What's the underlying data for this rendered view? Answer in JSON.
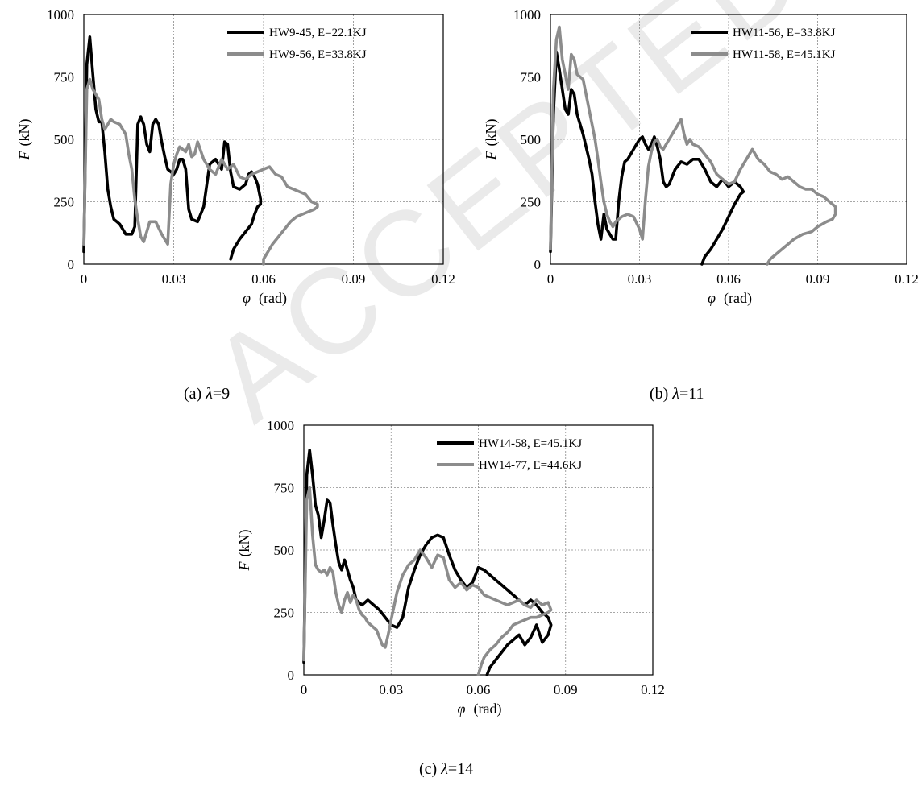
{
  "watermark": "ACCEPTED MANUSCRIPT",
  "axis": {
    "x_symbol": "φ",
    "x_unit": "(rad)",
    "y_symbol": "F",
    "y_unit": "(kN)"
  },
  "colors": {
    "black_series": "#000000",
    "gray_series": "#8c8c8c",
    "grid": "#8a8a8a"
  },
  "chart_data": [
    {
      "type": "line",
      "caption": {
        "prefix": "(a) ",
        "symbol": "λ",
        "suffix": "=9"
      },
      "xlabel": "φ (rad)",
      "ylabel": "F (kN)",
      "xlim": [
        0,
        0.12
      ],
      "ylim": [
        0,
        1000
      ],
      "xticks": [
        "0",
        "0.03",
        "0.06",
        "0.09",
        "0.12"
      ],
      "yticks": [
        "0",
        "250",
        "500",
        "750",
        "1000"
      ],
      "grid": true,
      "legend_position": "top-right",
      "series": [
        {
          "name": "HW9-45, E=22.1KJ",
          "color": "#000000",
          "x": [
            0.0,
            0.001,
            0.002,
            0.003,
            0.004,
            0.005,
            0.006,
            0.007,
            0.008,
            0.009,
            0.01,
            0.011,
            0.012,
            0.013,
            0.014,
            0.016,
            0.017,
            0.018,
            0.019,
            0.02,
            0.021,
            0.022,
            0.023,
            0.024,
            0.025,
            0.026,
            0.027,
            0.028,
            0.029,
            0.03,
            0.031,
            0.032,
            0.033,
            0.034,
            0.035,
            0.036,
            0.038,
            0.04,
            0.042,
            0.044,
            0.046,
            0.047,
            0.048,
            0.049,
            0.05,
            0.052,
            0.054,
            0.055,
            0.056,
            0.057,
            0.058,
            0.059,
            0.059,
            0.058,
            0.057,
            0.056,
            0.054,
            0.052,
            0.05,
            0.049
          ],
          "y": [
            50,
            800,
            910,
            760,
            620,
            570,
            570,
            450,
            300,
            230,
            180,
            170,
            160,
            140,
            120,
            120,
            150,
            560,
            590,
            560,
            480,
            450,
            560,
            580,
            560,
            490,
            430,
            380,
            370,
            360,
            380,
            420,
            420,
            380,
            220,
            180,
            170,
            230,
            400,
            420,
            380,
            490,
            480,
            370,
            310,
            300,
            320,
            360,
            370,
            350,
            320,
            260,
            240,
            230,
            200,
            160,
            130,
            100,
            60,
            20
          ]
        },
        {
          "name": "HW9-56, E=33.8KJ",
          "color": "#8c8c8c",
          "x": [
            0.0,
            0.001,
            0.002,
            0.003,
            0.004,
            0.005,
            0.006,
            0.007,
            0.008,
            0.009,
            0.01,
            0.012,
            0.014,
            0.015,
            0.016,
            0.017,
            0.018,
            0.019,
            0.02,
            0.021,
            0.022,
            0.024,
            0.026,
            0.027,
            0.028,
            0.029,
            0.03,
            0.031,
            0.032,
            0.034,
            0.035,
            0.036,
            0.037,
            0.038,
            0.04,
            0.042,
            0.044,
            0.046,
            0.048,
            0.05,
            0.052,
            0.054,
            0.056,
            0.058,
            0.06,
            0.062,
            0.064,
            0.066,
            0.068,
            0.07,
            0.072,
            0.074,
            0.076,
            0.078,
            0.078,
            0.077,
            0.075,
            0.073,
            0.071,
            0.069,
            0.067,
            0.065,
            0.063,
            0.062,
            0.061,
            0.06,
            0.06
          ],
          "y": [
            80,
            700,
            740,
            700,
            680,
            660,
            580,
            540,
            560,
            580,
            570,
            560,
            520,
            440,
            380,
            260,
            180,
            110,
            90,
            130,
            170,
            170,
            120,
            100,
            80,
            320,
            400,
            440,
            470,
            450,
            480,
            430,
            440,
            490,
            420,
            380,
            360,
            420,
            380,
            400,
            350,
            340,
            360,
            370,
            380,
            390,
            360,
            350,
            310,
            300,
            290,
            280,
            250,
            240,
            230,
            220,
            210,
            200,
            190,
            170,
            140,
            110,
            80,
            60,
            40,
            20,
            0
          ]
        }
      ]
    },
    {
      "type": "line",
      "caption": {
        "prefix": "(b) ",
        "symbol": "λ",
        "suffix": "=11"
      },
      "xlabel": "φ (rad)",
      "ylabel": "F (kN)",
      "xlim": [
        0,
        0.12
      ],
      "ylim": [
        0,
        1000
      ],
      "xticks": [
        "0",
        "0.03",
        "0.06",
        "0.09",
        "0.12"
      ],
      "yticks": [
        "0",
        "250",
        "500",
        "750",
        "1000"
      ],
      "grid": true,
      "legend_position": "top-right",
      "series": [
        {
          "name": "HW11-56, E=33.8KJ",
          "color": "#000000",
          "x": [
            0.0,
            0.001,
            0.002,
            0.003,
            0.004,
            0.005,
            0.006,
            0.007,
            0.008,
            0.009,
            0.01,
            0.011,
            0.012,
            0.013,
            0.014,
            0.015,
            0.016,
            0.017,
            0.018,
            0.019,
            0.02,
            0.021,
            0.022,
            0.023,
            0.024,
            0.025,
            0.026,
            0.027,
            0.028,
            0.029,
            0.03,
            0.031,
            0.032,
            0.033,
            0.034,
            0.035,
            0.036,
            0.037,
            0.038,
            0.039,
            0.04,
            0.042,
            0.044,
            0.046,
            0.048,
            0.05,
            0.052,
            0.054,
            0.056,
            0.058,
            0.06,
            0.062,
            0.064,
            0.065,
            0.064,
            0.062,
            0.06,
            0.058,
            0.056,
            0.054,
            0.052,
            0.051
          ],
          "y": [
            50,
            600,
            850,
            780,
            700,
            620,
            600,
            700,
            680,
            600,
            560,
            520,
            470,
            420,
            360,
            250,
            160,
            100,
            200,
            140,
            120,
            100,
            100,
            250,
            350,
            410,
            420,
            440,
            460,
            480,
            500,
            510,
            480,
            460,
            480,
            510,
            470,
            420,
            330,
            310,
            320,
            380,
            410,
            400,
            420,
            420,
            380,
            330,
            310,
            340,
            310,
            330,
            310,
            290,
            280,
            240,
            190,
            140,
            100,
            60,
            30,
            0
          ]
        },
        {
          "name": "HW11-58, E=45.1KJ",
          "color": "#8c8c8c",
          "x": [
            0.0,
            0.001,
            0.002,
            0.003,
            0.004,
            0.005,
            0.006,
            0.007,
            0.008,
            0.009,
            0.01,
            0.011,
            0.012,
            0.013,
            0.014,
            0.015,
            0.016,
            0.017,
            0.018,
            0.019,
            0.02,
            0.021,
            0.022,
            0.024,
            0.026,
            0.028,
            0.03,
            0.031,
            0.032,
            0.033,
            0.034,
            0.035,
            0.036,
            0.037,
            0.038,
            0.039,
            0.04,
            0.041,
            0.042,
            0.043,
            0.044,
            0.045,
            0.046,
            0.047,
            0.048,
            0.05,
            0.052,
            0.054,
            0.056,
            0.058,
            0.06,
            0.062,
            0.064,
            0.066,
            0.068,
            0.07,
            0.072,
            0.074,
            0.076,
            0.078,
            0.08,
            0.082,
            0.084,
            0.086,
            0.088,
            0.09,
            0.092,
            0.094,
            0.096,
            0.096,
            0.095,
            0.093,
            0.09,
            0.088,
            0.085,
            0.082,
            0.08,
            0.078,
            0.076,
            0.074,
            0.073
          ],
          "y": [
            60,
            700,
            900,
            950,
            820,
            760,
            700,
            840,
            820,
            760,
            750,
            740,
            680,
            620,
            560,
            500,
            420,
            330,
            250,
            200,
            170,
            150,
            170,
            190,
            200,
            190,
            140,
            100,
            260,
            390,
            450,
            490,
            500,
            470,
            460,
            480,
            500,
            520,
            540,
            560,
            580,
            520,
            480,
            500,
            480,
            470,
            440,
            410,
            360,
            340,
            320,
            330,
            380,
            420,
            460,
            420,
            400,
            370,
            360,
            340,
            350,
            330,
            310,
            300,
            300,
            280,
            270,
            250,
            230,
            200,
            180,
            170,
            150,
            130,
            120,
            100,
            80,
            60,
            40,
            20,
            0
          ]
        }
      ]
    },
    {
      "type": "line",
      "caption": {
        "prefix": "(c) ",
        "symbol": "λ",
        "suffix": "=14"
      },
      "xlabel": "φ (rad)",
      "ylabel": "F (kN)",
      "xlim": [
        0,
        0.12
      ],
      "ylim": [
        0,
        1000
      ],
      "xticks": [
        "0",
        "0.03",
        "0.06",
        "0.09",
        "0.12"
      ],
      "yticks": [
        "0",
        "250",
        "500",
        "750",
        "1000"
      ],
      "grid": true,
      "legend_position": "top-right",
      "series": [
        {
          "name": "HW14-58, E=45.1KJ",
          "color": "#000000",
          "x": [
            0.0,
            0.001,
            0.002,
            0.003,
            0.004,
            0.005,
            0.006,
            0.007,
            0.008,
            0.009,
            0.01,
            0.011,
            0.012,
            0.013,
            0.014,
            0.015,
            0.016,
            0.017,
            0.018,
            0.019,
            0.02,
            0.022,
            0.024,
            0.026,
            0.028,
            0.03,
            0.032,
            0.034,
            0.036,
            0.038,
            0.04,
            0.042,
            0.044,
            0.046,
            0.048,
            0.05,
            0.052,
            0.054,
            0.056,
            0.058,
            0.06,
            0.062,
            0.064,
            0.066,
            0.068,
            0.07,
            0.072,
            0.074,
            0.076,
            0.078,
            0.08,
            0.082,
            0.084,
            0.085,
            0.084,
            0.082,
            0.08,
            0.078,
            0.076,
            0.074,
            0.072,
            0.07,
            0.068,
            0.066,
            0.064,
            0.063
          ],
          "y": [
            50,
            800,
            900,
            800,
            680,
            640,
            550,
            620,
            700,
            690,
            600,
            520,
            450,
            420,
            460,
            420,
            380,
            350,
            300,
            290,
            280,
            300,
            280,
            260,
            230,
            200,
            190,
            230,
            350,
            420,
            480,
            520,
            550,
            560,
            550,
            480,
            420,
            380,
            350,
            370,
            430,
            420,
            400,
            380,
            360,
            340,
            320,
            300,
            280,
            300,
            280,
            250,
            230,
            200,
            160,
            130,
            200,
            150,
            120,
            160,
            140,
            120,
            90,
            60,
            30,
            0
          ]
        },
        {
          "name": "HW14-77, E=44.6KJ",
          "color": "#8c8c8c",
          "x": [
            0.0,
            0.001,
            0.002,
            0.003,
            0.004,
            0.005,
            0.006,
            0.007,
            0.008,
            0.009,
            0.01,
            0.011,
            0.012,
            0.013,
            0.014,
            0.015,
            0.016,
            0.017,
            0.018,
            0.019,
            0.02,
            0.021,
            0.022,
            0.023,
            0.024,
            0.025,
            0.026,
            0.027,
            0.028,
            0.029,
            0.03,
            0.032,
            0.034,
            0.036,
            0.038,
            0.04,
            0.042,
            0.044,
            0.046,
            0.048,
            0.05,
            0.052,
            0.054,
            0.056,
            0.058,
            0.06,
            0.062,
            0.064,
            0.066,
            0.068,
            0.07,
            0.072,
            0.074,
            0.076,
            0.078,
            0.08,
            0.082,
            0.084,
            0.085,
            0.084,
            0.082,
            0.08,
            0.078,
            0.076,
            0.074,
            0.072,
            0.07,
            0.068,
            0.066,
            0.064,
            0.062,
            0.061,
            0.06
          ],
          "y": [
            60,
            700,
            750,
            560,
            440,
            420,
            410,
            420,
            400,
            430,
            410,
            330,
            280,
            250,
            300,
            330,
            290,
            320,
            300,
            260,
            240,
            230,
            210,
            200,
            190,
            180,
            150,
            120,
            110,
            160,
            220,
            330,
            400,
            440,
            460,
            500,
            470,
            430,
            480,
            470,
            380,
            350,
            370,
            340,
            360,
            350,
            320,
            310,
            300,
            290,
            280,
            290,
            300,
            280,
            270,
            300,
            280,
            290,
            260,
            250,
            240,
            230,
            230,
            220,
            210,
            200,
            170,
            150,
            120,
            100,
            70,
            40,
            0
          ]
        }
      ]
    }
  ]
}
